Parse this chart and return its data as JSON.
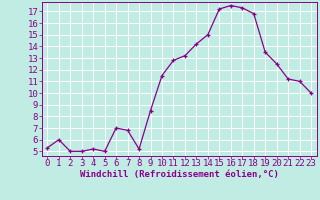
{
  "x": [
    0,
    1,
    2,
    3,
    4,
    5,
    6,
    7,
    8,
    9,
    10,
    11,
    12,
    13,
    14,
    15,
    16,
    17,
    18,
    19,
    20,
    21,
    22,
    23
  ],
  "y": [
    5.3,
    6.0,
    5.0,
    5.0,
    5.2,
    5.0,
    7.0,
    6.8,
    5.2,
    8.5,
    11.5,
    12.8,
    13.2,
    14.2,
    15.0,
    17.2,
    17.5,
    17.3,
    16.8,
    13.5,
    12.5,
    11.2,
    11.0,
    10.0
  ],
  "line_color": "#8b008b",
  "marker": "+",
  "bg_color": "#c0ece4",
  "grid_color": "#ffffff",
  "xlabel": "Windchill (Refroidissement éolien,°C)",
  "ylabel_ticks": [
    5,
    6,
    7,
    8,
    9,
    10,
    11,
    12,
    13,
    14,
    15,
    16,
    17
  ],
  "ylim": [
    4.6,
    17.8
  ],
  "xlim": [
    -0.5,
    23.5
  ],
  "tick_color": "#8b008b",
  "font_size": 6.5,
  "linewidth": 0.9,
  "markersize": 3.5,
  "markeredgewidth": 0.9
}
